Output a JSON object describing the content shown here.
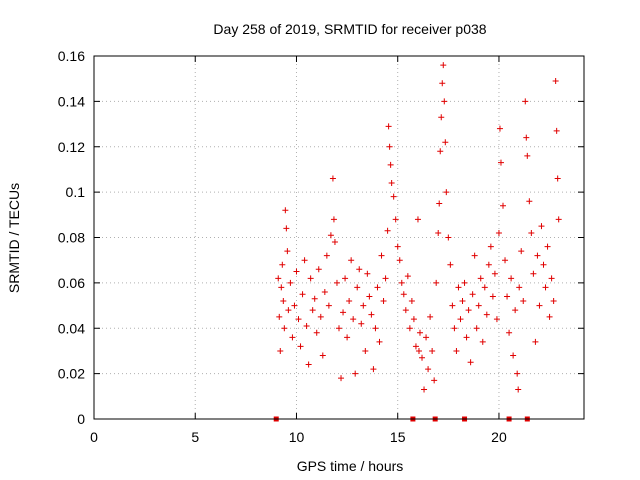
{
  "chart_data": {
    "type": "scatter",
    "title": "Day 258 of 2019, SRMTID for receiver p038",
    "xlabel": "GPS time / hours",
    "ylabel": "SRMTID / TECUs",
    "xlim": [
      0,
      24.2
    ],
    "ylim": [
      0,
      0.16
    ],
    "x_ticks": [
      0,
      5,
      10,
      15,
      20
    ],
    "x_tick_labels": [
      "0",
      "5",
      "10",
      "15",
      "20"
    ],
    "y_ticks": [
      0,
      0.02,
      0.04,
      0.06,
      0.08,
      0.1,
      0.12,
      0.14,
      0.16
    ],
    "y_tick_labels": [
      "0",
      "0.02",
      "0.04",
      "0.06",
      "0.08",
      "0.1",
      "0.12",
      "0.14",
      "0.16"
    ],
    "grid": true,
    "marker": "+",
    "series_color": "#e00000",
    "series": [
      {
        "name": "SRMTID",
        "points": [
          [
            9.1,
            0.062
          ],
          [
            9.15,
            0.045
          ],
          [
            9.2,
            0.03
          ],
          [
            9.25,
            0.058
          ],
          [
            9.3,
            0.068
          ],
          [
            9.35,
            0.052
          ],
          [
            9.4,
            0.04
          ],
          [
            9.45,
            0.092
          ],
          [
            9.5,
            0.084
          ],
          [
            9.55,
            0.074
          ],
          [
            9.6,
            0.048
          ],
          [
            9.7,
            0.06
          ],
          [
            9.8,
            0.036
          ],
          [
            9.9,
            0.05
          ],
          [
            10.0,
            0.065
          ],
          [
            10.1,
            0.044
          ],
          [
            10.2,
            0.032
          ],
          [
            10.3,
            0.055
          ],
          [
            10.4,
            0.07
          ],
          [
            10.5,
            0.041
          ],
          [
            10.6,
            0.024
          ],
          [
            10.7,
            0.062
          ],
          [
            10.8,
            0.048
          ],
          [
            10.9,
            0.053
          ],
          [
            11.0,
            0.038
          ],
          [
            11.1,
            0.066
          ],
          [
            11.2,
            0.045
          ],
          [
            11.3,
            0.028
          ],
          [
            11.4,
            0.056
          ],
          [
            11.5,
            0.072
          ],
          [
            11.6,
            0.05
          ],
          [
            11.7,
            0.081
          ],
          [
            11.8,
            0.106
          ],
          [
            11.85,
            0.088
          ],
          [
            11.9,
            0.078
          ],
          [
            12.0,
            0.06
          ],
          [
            12.1,
            0.04
          ],
          [
            12.2,
            0.018
          ],
          [
            12.3,
            0.047
          ],
          [
            12.4,
            0.062
          ],
          [
            12.5,
            0.036
          ],
          [
            12.6,
            0.052
          ],
          [
            12.7,
            0.07
          ],
          [
            12.8,
            0.044
          ],
          [
            12.9,
            0.02
          ],
          [
            13.0,
            0.058
          ],
          [
            13.1,
            0.066
          ],
          [
            13.2,
            0.042
          ],
          [
            13.3,
            0.05
          ],
          [
            13.4,
            0.03
          ],
          [
            13.5,
            0.064
          ],
          [
            13.6,
            0.054
          ],
          [
            13.7,
            0.046
          ],
          [
            13.8,
            0.022
          ],
          [
            13.9,
            0.04
          ],
          [
            14.0,
            0.058
          ],
          [
            14.1,
            0.034
          ],
          [
            14.2,
            0.072
          ],
          [
            14.3,
            0.052
          ],
          [
            14.4,
            0.062
          ],
          [
            14.5,
            0.083
          ],
          [
            14.55,
            0.129
          ],
          [
            14.6,
            0.12
          ],
          [
            14.65,
            0.112
          ],
          [
            14.7,
            0.104
          ],
          [
            14.8,
            0.098
          ],
          [
            14.9,
            0.088
          ],
          [
            15.0,
            0.076
          ],
          [
            15.1,
            0.07
          ],
          [
            15.2,
            0.06
          ],
          [
            15.3,
            0.055
          ],
          [
            15.4,
            0.048
          ],
          [
            15.5,
            0.063
          ],
          [
            15.6,
            0.04
          ],
          [
            15.7,
            0.052
          ],
          [
            15.8,
            0.044
          ],
          [
            15.9,
            0.032
          ],
          [
            16.0,
            0.088
          ],
          [
            16.05,
            0.03
          ],
          [
            16.1,
            0.038
          ],
          [
            16.2,
            0.027
          ],
          [
            16.3,
            0.013
          ],
          [
            16.4,
            0.036
          ],
          [
            16.5,
            0.022
          ],
          [
            16.6,
            0.045
          ],
          [
            16.7,
            0.03
          ],
          [
            16.8,
            0.017
          ],
          [
            16.9,
            0.06
          ],
          [
            17.0,
            0.082
          ],
          [
            17.05,
            0.095
          ],
          [
            17.1,
            0.118
          ],
          [
            17.15,
            0.133
          ],
          [
            17.2,
            0.148
          ],
          [
            17.25,
            0.156
          ],
          [
            17.3,
            0.14
          ],
          [
            17.35,
            0.122
          ],
          [
            17.4,
            0.1
          ],
          [
            17.5,
            0.08
          ],
          [
            17.6,
            0.068
          ],
          [
            17.7,
            0.05
          ],
          [
            17.8,
            0.04
          ],
          [
            17.9,
            0.03
          ],
          [
            18.0,
            0.058
          ],
          [
            18.1,
            0.044
          ],
          [
            18.2,
            0.052
          ],
          [
            18.3,
            0.06
          ],
          [
            18.4,
            0.036
          ],
          [
            18.5,
            0.048
          ],
          [
            18.6,
            0.025
          ],
          [
            18.7,
            0.055
          ],
          [
            18.8,
            0.072
          ],
          [
            18.9,
            0.04
          ],
          [
            19.0,
            0.05
          ],
          [
            19.1,
            0.062
          ],
          [
            19.2,
            0.034
          ],
          [
            19.3,
            0.058
          ],
          [
            19.4,
            0.046
          ],
          [
            19.5,
            0.068
          ],
          [
            19.6,
            0.076
          ],
          [
            19.7,
            0.054
          ],
          [
            19.8,
            0.064
          ],
          [
            19.9,
            0.044
          ],
          [
            20.0,
            0.082
          ],
          [
            20.05,
            0.128
          ],
          [
            20.1,
            0.113
          ],
          [
            20.2,
            0.094
          ],
          [
            20.3,
            0.07
          ],
          [
            20.4,
            0.054
          ],
          [
            20.5,
            0.038
          ],
          [
            20.6,
            0.062
          ],
          [
            20.7,
            0.028
          ],
          [
            20.8,
            0.048
          ],
          [
            20.9,
            0.02
          ],
          [
            20.95,
            0.013
          ],
          [
            21.0,
            0.058
          ],
          [
            21.1,
            0.074
          ],
          [
            21.2,
            0.052
          ],
          [
            21.3,
            0.14
          ],
          [
            21.35,
            0.124
          ],
          [
            21.4,
            0.116
          ],
          [
            21.5,
            0.096
          ],
          [
            21.6,
            0.082
          ],
          [
            21.7,
            0.064
          ],
          [
            21.8,
            0.034
          ],
          [
            21.9,
            0.072
          ],
          [
            22.0,
            0.05
          ],
          [
            22.1,
            0.085
          ],
          [
            22.2,
            0.068
          ],
          [
            22.3,
            0.058
          ],
          [
            22.4,
            0.076
          ],
          [
            22.5,
            0.045
          ],
          [
            22.6,
            0.062
          ],
          [
            22.7,
            0.052
          ],
          [
            22.8,
            0.149
          ],
          [
            22.85,
            0.127
          ],
          [
            22.9,
            0.106
          ],
          [
            22.95,
            0.088
          ]
        ]
      }
    ],
    "axis_markers": {
      "description": "small filled squares on the x-axis",
      "x": [
        9.0,
        15.75,
        16.85,
        18.3,
        20.5,
        21.4
      ]
    }
  }
}
